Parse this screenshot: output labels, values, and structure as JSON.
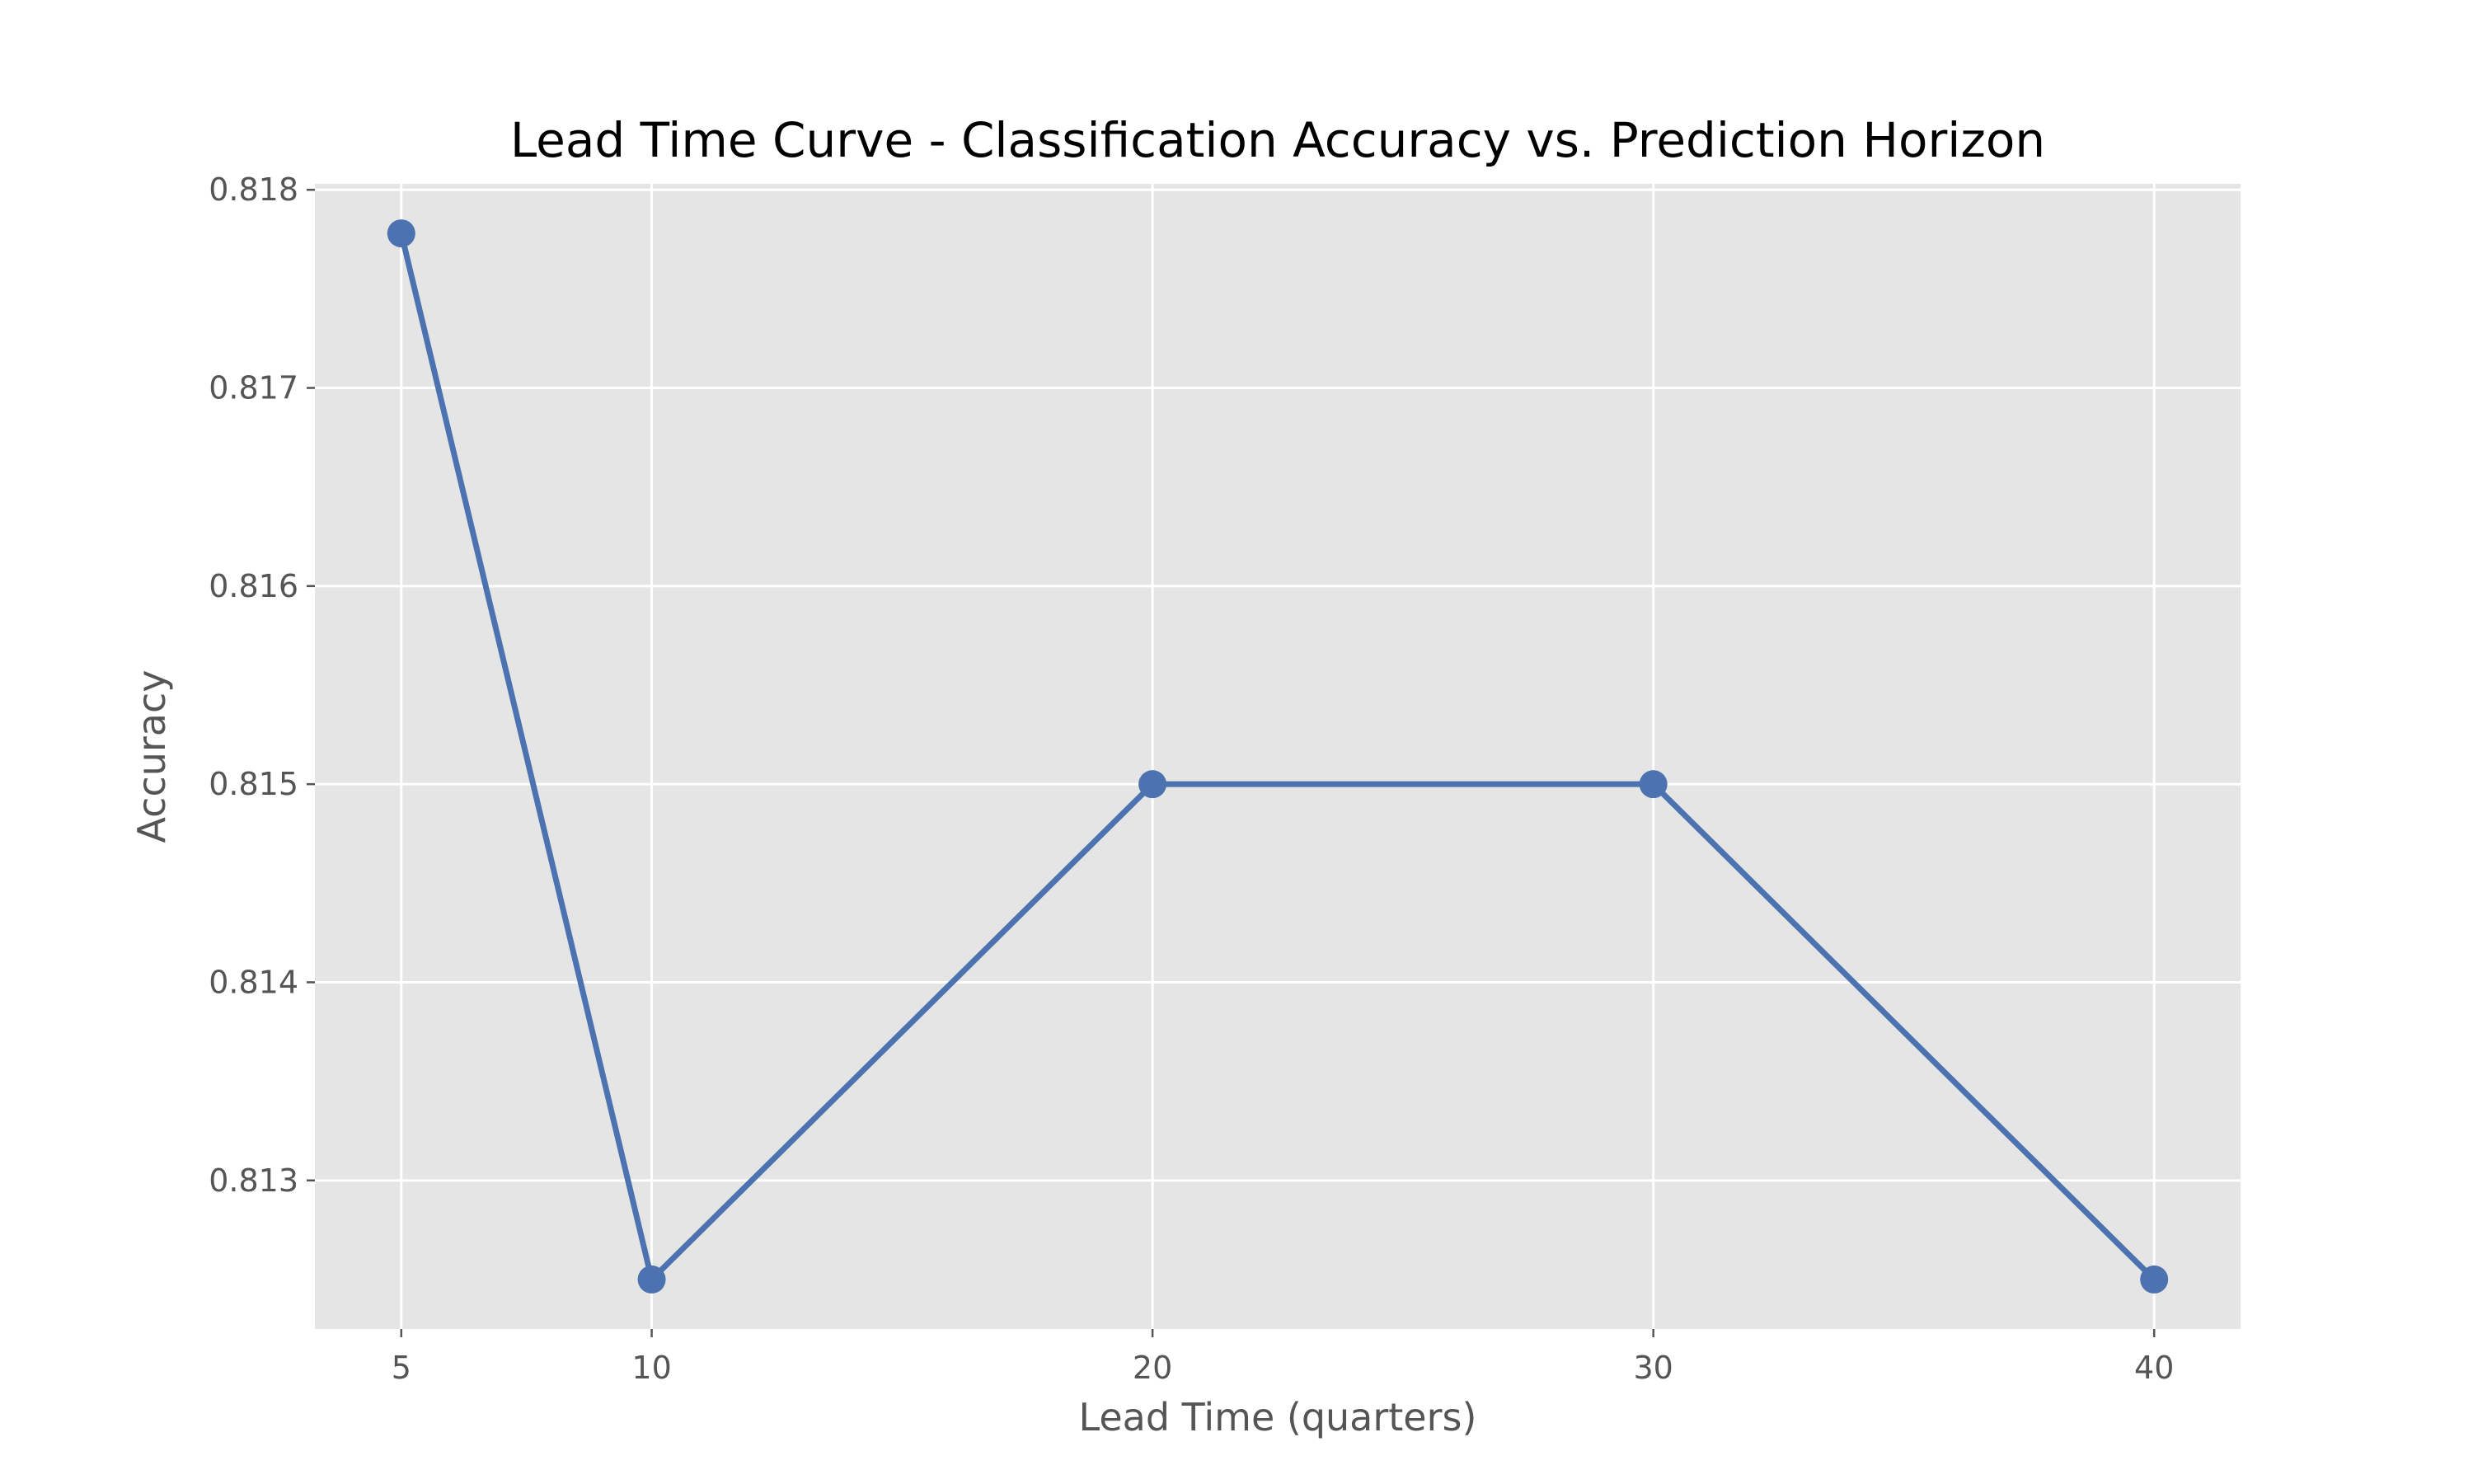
{
  "chart_data": {
    "type": "line",
    "title": "Lead Time Curve - Classification Accuracy vs. Prediction Horizon",
    "xlabel": "Lead Time (quarters)",
    "ylabel": "Accuracy",
    "x": [
      5,
      10,
      20,
      30,
      40
    ],
    "series": [
      {
        "values": [
          0.81778,
          0.8125,
          0.815,
          0.815,
          0.8125
        ]
      }
    ],
    "x_ticks": [
      5,
      10,
      20,
      30,
      40
    ],
    "y_ticks": [
      0.813,
      0.814,
      0.815,
      0.816,
      0.817,
      0.818
    ],
    "xlim": [
      3.275,
      41.725
    ],
    "ylim": [
      0.81225,
      0.81803
    ],
    "grid": true,
    "legend": "none",
    "colors": {
      "line": "#4c72b0",
      "plot_background": "#e5e5e5",
      "grid": "#ffffff",
      "text": "#555555"
    }
  }
}
